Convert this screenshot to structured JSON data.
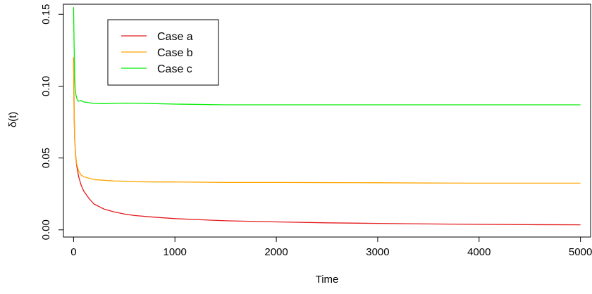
{
  "chart_data": {
    "type": "line",
    "title": "",
    "xlabel": "Time",
    "ylabel": "δ(t)",
    "xlim": [
      -100,
      5100
    ],
    "ylim": [
      -0.005,
      0.157
    ],
    "x_ticks": [
      0,
      1000,
      2000,
      3000,
      4000,
      5000
    ],
    "x_tick_labels": [
      "0",
      "1000",
      "2000",
      "3000",
      "4000",
      "5000"
    ],
    "y_ticks": [
      0.0,
      0.05,
      0.1,
      0.15
    ],
    "y_tick_labels": [
      "0.00",
      "0.05",
      "0.10",
      "0.15"
    ],
    "grid": false,
    "legend_position": "top-left",
    "series": [
      {
        "name": "Case a",
        "color": "#e41a1c",
        "x": [
          0,
          5,
          10,
          20,
          30,
          50,
          75,
          100,
          150,
          200,
          300,
          400,
          500,
          600,
          800,
          1000,
          1200,
          1500,
          2000,
          2500,
          3000,
          3500,
          4000,
          4500,
          5000
        ],
        "y": [
          0.12,
          0.085,
          0.065,
          0.052,
          0.045,
          0.037,
          0.031,
          0.027,
          0.022,
          0.018,
          0.0145,
          0.0125,
          0.011,
          0.01,
          0.0088,
          0.0078,
          0.0072,
          0.0063,
          0.0055,
          0.0049,
          0.0045,
          0.0041,
          0.0038,
          0.0036,
          0.0035
        ]
      },
      {
        "name": "Case b",
        "color": "#ffa500",
        "x": [
          0,
          5,
          10,
          20,
          30,
          50,
          75,
          100,
          150,
          200,
          300,
          400,
          500,
          600,
          800,
          1000,
          1500,
          2000,
          3000,
          3500,
          4000,
          5000
        ],
        "y": [
          0.12,
          0.085,
          0.065,
          0.052,
          0.046,
          0.041,
          0.038,
          0.037,
          0.036,
          0.035,
          0.0345,
          0.034,
          0.0338,
          0.0335,
          0.0333,
          0.0333,
          0.033,
          0.033,
          0.0328,
          0.0326,
          0.0325,
          0.0325
        ]
      },
      {
        "name": "Case c",
        "color": "#00ee00",
        "x": [
          0,
          5,
          10,
          15,
          20,
          30,
          40,
          50,
          75,
          100,
          150,
          200,
          300,
          500,
          700,
          1000,
          1500,
          2000,
          3000,
          4000,
          5000
        ],
        "y": [
          0.155,
          0.13,
          0.11,
          0.1,
          0.095,
          0.092,
          0.09,
          0.0895,
          0.09,
          0.089,
          0.0885,
          0.088,
          0.0878,
          0.0882,
          0.088,
          0.0875,
          0.087,
          0.087,
          0.087,
          0.087,
          0.087
        ]
      }
    ]
  }
}
